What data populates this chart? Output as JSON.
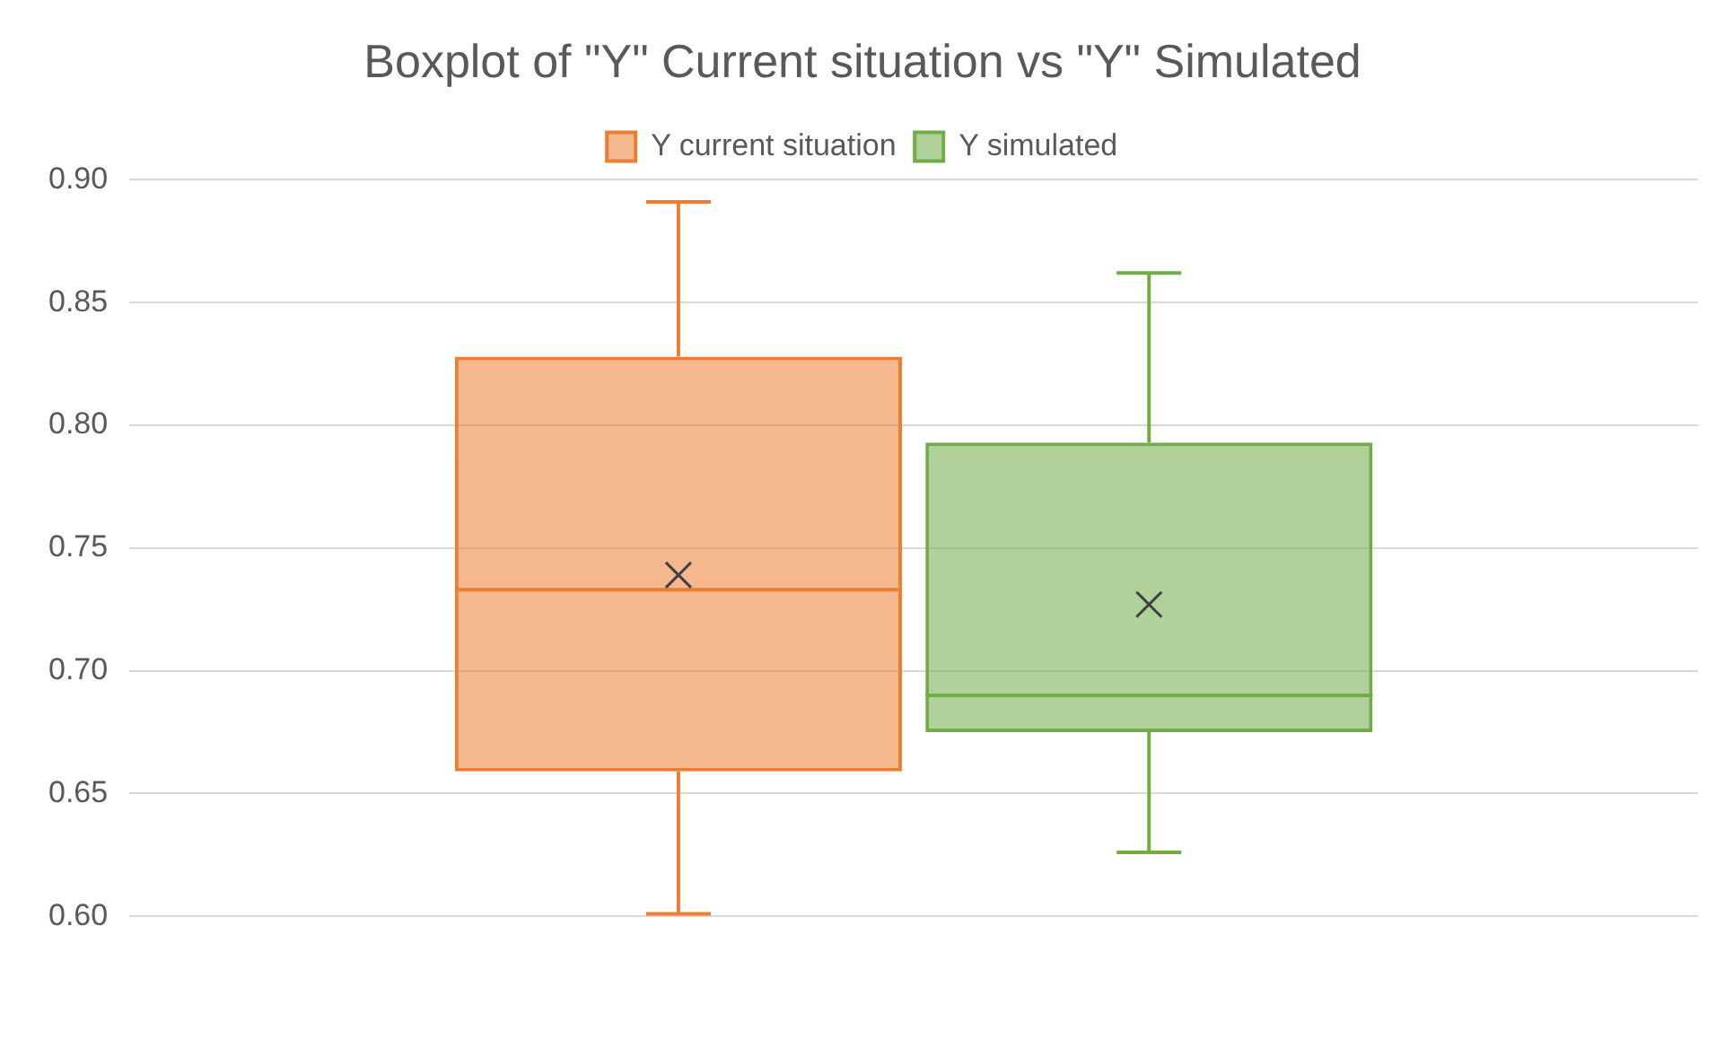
{
  "chart_data": {
    "type": "box",
    "title": "Boxplot of \"Y\" Current situation vs \"Y\" Simulated",
    "categories": [
      null
    ],
    "series": [
      {
        "name": "Y current situation",
        "color": "#ed7d31",
        "boxes": [
          {
            "low": 0.601,
            "q1": 0.659,
            "median": 0.733,
            "q3": 0.828,
            "high": 0.891,
            "mean": 0.739
          }
        ]
      },
      {
        "name": "Y simulated",
        "color": "#70ad47",
        "boxes": [
          {
            "low": 0.626,
            "q1": 0.675,
            "median": 0.69,
            "q3": 0.793,
            "high": 0.862,
            "mean": 0.727
          }
        ]
      }
    ],
    "ylim": [
      0.6,
      0.9
    ],
    "yticks": [
      {
        "value": 0.6,
        "label": "0.60"
      },
      {
        "value": 0.65,
        "label": "0.65"
      },
      {
        "value": 0.7,
        "label": "0.70"
      },
      {
        "value": 0.75,
        "label": "0.75"
      },
      {
        "value": 0.8,
        "label": "0.80"
      },
      {
        "value": 0.85,
        "label": "0.85"
      },
      {
        "value": 0.9,
        "label": "0.90"
      }
    ],
    "grid": "y",
    "legend": "top"
  }
}
